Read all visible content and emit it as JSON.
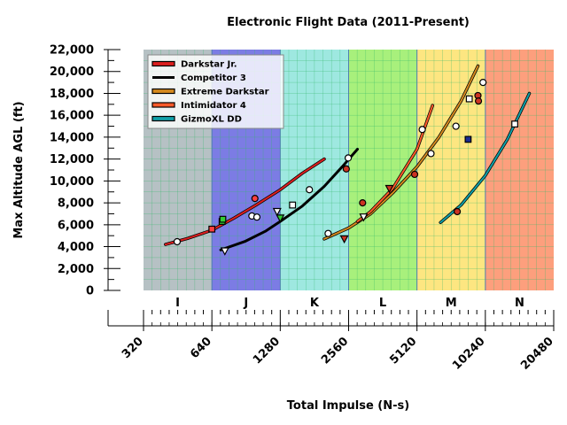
{
  "chart_data": {
    "type": "line",
    "title": "Electronic Flight Data (2011-Present)",
    "xlabel": "Total Impulse (N-s)",
    "ylabel": "Max Altitude AGL (ft)",
    "x_scale": "log2",
    "xlim": [
      320,
      20480
    ],
    "ylim": [
      0,
      22000
    ],
    "y_ticks": [
      "0",
      "2,000",
      "4,000",
      "6,000",
      "8,000",
      "10,000",
      "12,000",
      "14,000",
      "16,000",
      "18,000",
      "20,000",
      "22,000"
    ],
    "x_tick_values": [
      320,
      640,
      1280,
      2560,
      5120,
      10240,
      20480
    ],
    "x_ticks": [
      "320",
      "640",
      "1280",
      "2560",
      "5120",
      "10240",
      "20480"
    ],
    "grid": true,
    "legend_position": "top-left",
    "classes": [
      {
        "label": "I",
        "from": 320,
        "to": 640,
        "color": "#b6c1c4"
      },
      {
        "label": "J",
        "from": 640,
        "to": 1280,
        "color": "#7c7ce4"
      },
      {
        "label": "K",
        "from": 1280,
        "to": 2560,
        "color": "#9ee8e0"
      },
      {
        "label": "L",
        "from": 2560,
        "to": 5120,
        "color": "#a8f07c"
      },
      {
        "label": "M",
        "from": 5120,
        "to": 10240,
        "color": "#fde681"
      },
      {
        "label": "N",
        "from": 10240,
        "to": 20480,
        "color": "#fd9f7d"
      }
    ],
    "series": [
      {
        "name": "Darkstar Jr.",
        "color": "#dd1f1f",
        "curve_x": [
          400,
          500,
          640,
          800,
          1000,
          1280,
          1600,
          2000
        ],
        "curve_y": [
          4200,
          4750,
          5500,
          6600,
          7800,
          9200,
          10700,
          12000
        ],
        "points": [
          {
            "x": 450,
            "y": 4450,
            "marker": "circle",
            "fill": "#ffffff"
          },
          {
            "x": 640,
            "y": 5600,
            "marker": "square",
            "fill": "#ff4040"
          },
          {
            "x": 710,
            "y": 6300,
            "marker": "square",
            "fill": "#33cc33"
          },
          {
            "x": 715,
            "y": 6500,
            "marker": "square",
            "fill": "#33cc33"
          },
          {
            "x": 990,
            "y": 8400,
            "marker": "circle",
            "fill": "#ff4040"
          }
        ]
      },
      {
        "name": "Competitor 3",
        "color": "#000000",
        "curve_x": [
          700,
          900,
          1100,
          1280,
          1600,
          2000,
          2400,
          2800
        ],
        "curve_y": [
          3700,
          4500,
          5400,
          6300,
          7700,
          9500,
          11300,
          12900
        ],
        "points": [
          {
            "x": 730,
            "y": 3600,
            "marker": "triangle",
            "fill": "#ffffff"
          },
          {
            "x": 960,
            "y": 6800,
            "marker": "circle",
            "fill": "#ffffff"
          },
          {
            "x": 1010,
            "y": 6700,
            "marker": "circle",
            "fill": "#ffffff"
          },
          {
            "x": 1240,
            "y": 7200,
            "marker": "triangle",
            "fill": "#ffffff"
          },
          {
            "x": 1280,
            "y": 6600,
            "marker": "triangle",
            "fill": "#33cc33"
          },
          {
            "x": 1450,
            "y": 7800,
            "marker": "square",
            "fill": "#ffffff"
          },
          {
            "x": 1720,
            "y": 9200,
            "marker": "circle",
            "fill": "#ffffff"
          },
          {
            "x": 2500,
            "y": 11100,
            "marker": "circle",
            "fill": "#cc3322"
          },
          {
            "x": 2550,
            "y": 12100,
            "marker": "circle",
            "fill": "#ffffff"
          }
        ]
      },
      {
        "name": "Extreme Darkstar",
        "color": "#d68a1e",
        "curve_x": [
          2000,
          2560,
          3200,
          4000,
          5120,
          6400,
          8000,
          9500
        ],
        "curve_y": [
          4700,
          5700,
          7000,
          8900,
          11300,
          14000,
          17300,
          20500
        ],
        "points": [
          {
            "x": 2080,
            "y": 5200,
            "marker": "circle",
            "fill": "#ffffff"
          },
          {
            "x": 2450,
            "y": 4700,
            "marker": "triangle",
            "fill": "#cc3322"
          },
          {
            "x": 2980,
            "y": 6700,
            "marker": "triangle",
            "fill": "#ffffff"
          },
          {
            "x": 5900,
            "y": 12500,
            "marker": "circle",
            "fill": "#ffffff"
          },
          {
            "x": 7600,
            "y": 15000,
            "marker": "circle",
            "fill": "#ffffff"
          },
          {
            "x": 8700,
            "y": 17500,
            "marker": "square",
            "fill": "#ffffff"
          },
          {
            "x": 9500,
            "y": 17800,
            "marker": "circle",
            "fill": "#cc3322"
          },
          {
            "x": 9550,
            "y": 17300,
            "marker": "circle",
            "fill": "#cc3322"
          },
          {
            "x": 10000,
            "y": 19000,
            "marker": "circle",
            "fill": "#ffffff"
          }
        ]
      },
      {
        "name": "Intimidator 4",
        "color": "#ff5a2a",
        "curve_x": [
          2800,
          3200,
          4000,
          5120,
          6000
        ],
        "curve_y": [
          6300,
          7200,
          9300,
          12900,
          16900
        ],
        "points": [
          {
            "x": 2950,
            "y": 8000,
            "marker": "circle",
            "fill": "#cc3322"
          },
          {
            "x": 3870,
            "y": 9300,
            "marker": "triangle",
            "fill": "#cc3322"
          },
          {
            "x": 5000,
            "y": 10600,
            "marker": "circle",
            "fill": "#cc3322"
          },
          {
            "x": 5400,
            "y": 14700,
            "marker": "circle",
            "fill": "#ffffff"
          }
        ]
      },
      {
        "name": "GizmoXL DD",
        "color": "#10a0a8",
        "curve_x": [
          6500,
          8000,
          10240,
          12800,
          16000
        ],
        "curve_y": [
          6200,
          7800,
          10500,
          13800,
          18000
        ],
        "points": [
          {
            "x": 7700,
            "y": 7200,
            "marker": "circle",
            "fill": "#cc3322"
          },
          {
            "x": 8600,
            "y": 13800,
            "marker": "square",
            "fill": "#1a2a90"
          },
          {
            "x": 13800,
            "y": 15200,
            "marker": "square",
            "fill": "#ffffff"
          }
        ]
      }
    ]
  }
}
